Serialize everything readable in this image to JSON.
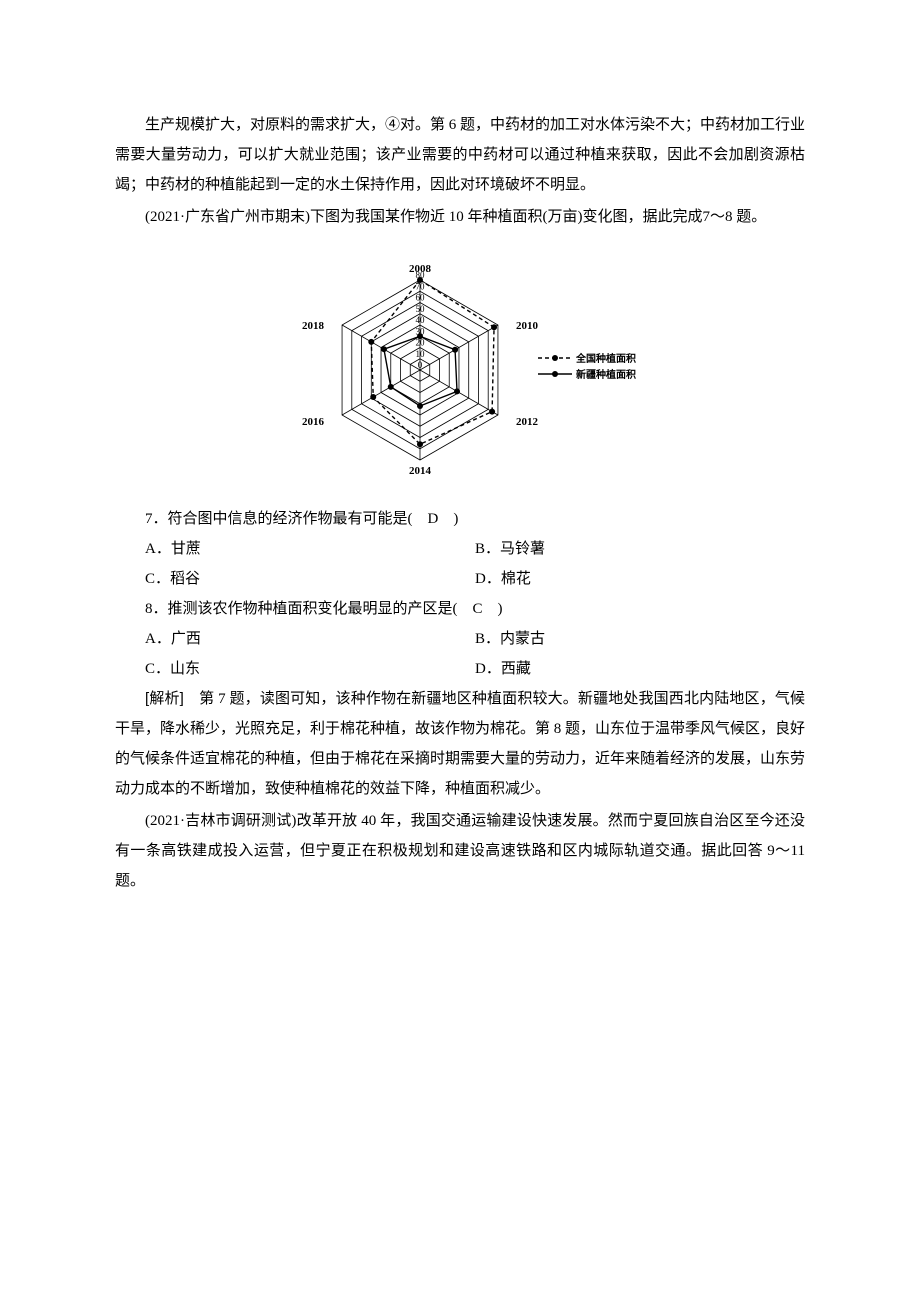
{
  "para1": "生产规模扩大，对原料的需求扩大，④对。第 6 题，中药材的加工对水体污染不大；中药材加工行业需要大量劳动力，可以扩大就业范围；该产业需要的中药材可以通过种植来获取，因此不会加剧资源枯竭；中药材的种植能起到一定的水土保持作用，因此对环境破坏不明显。",
  "intro78": "(2021·广东省广州市期末)下图为我国某作物近 10 年种植面积(万亩)变化图，据此完成7～8 题。",
  "chart": {
    "axes": [
      "2008",
      "2010",
      "2012",
      "2014",
      "2016",
      "2018"
    ],
    "rings": [
      10,
      20,
      30,
      40,
      50,
      60,
      70,
      80
    ],
    "ring_labels": [
      "0",
      "10",
      "20",
      "30",
      "40",
      "50",
      "60",
      "70",
      "80"
    ],
    "max": 80,
    "national": {
      "2008": 80,
      "2010": 76,
      "2012": 74,
      "2014": 66,
      "2016": 48,
      "2018": 50
    },
    "xinjiang": {
      "2008": 30,
      "2010": 36,
      "2012": 38,
      "2014": 32,
      "2016": 30,
      "2018": 37
    },
    "legend_national": "全国种植面积",
    "legend_xinjiang": "新疆种植面积",
    "color_line": "#000000",
    "color_national_dash": "4 3",
    "bg": "#ffffff"
  },
  "q7": {
    "stem": "7．符合图中信息的经济作物最有可能是(　D　)",
    "A": "A．甘蔗",
    "B": "B．马铃薯",
    "C": "C．稻谷",
    "D": "D．棉花"
  },
  "q8": {
    "stem": "8．推测该农作物种植面积变化最明显的产区是(　C　)",
    "A": "A．广西",
    "B": "B．内蒙古",
    "C": "C．山东",
    "D": "D．西藏"
  },
  "analysis_label": "[解析]",
  "analysis78": "　第 7 题，读图可知，该种作物在新疆地区种植面积较大。新疆地处我国西北内陆地区，气候干旱，降水稀少，光照充足，利于棉花种植，故该作物为棉花。第 8 题，山东位于温带季风气候区，良好的气候条件适宜棉花的种植，但由于棉花在采摘时期需要大量的劳动力，近年来随着经济的发展，山东劳动力成本的不断增加，致使种植棉花的效益下降，种植面积减少。",
  "intro911": "(2021·吉林市调研测试)改革开放 40 年，我国交通运输建设快速发展。然而宁夏回族自治区至今还没有一条高铁建成投入运营，但宁夏正在积极规划和建设高速铁路和区内城际轨道交通。据此回答 9～11 题。"
}
